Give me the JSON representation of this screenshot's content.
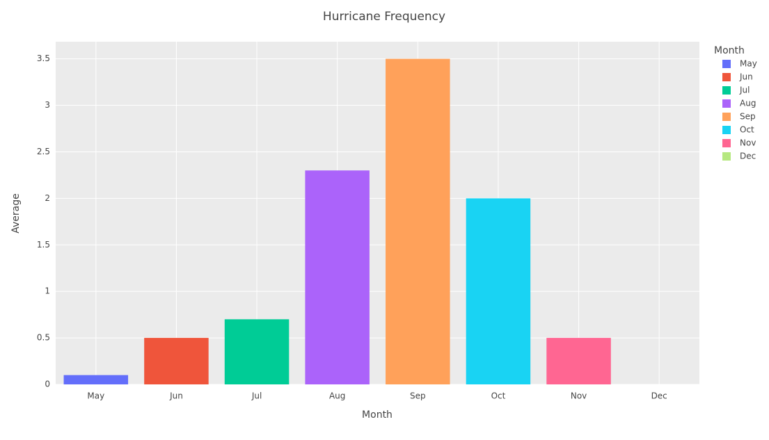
{
  "chart_data": {
    "type": "bar",
    "title": "Hurricane Frequency",
    "xlabel": "Month",
    "ylabel": "Average",
    "legend_title": "Month",
    "categories": [
      "May",
      "Jun",
      "Jul",
      "Aug",
      "Sep",
      "Oct",
      "Nov",
      "Dec"
    ],
    "values": [
      0.1,
      0.5,
      0.7,
      2.3,
      3.5,
      2.0,
      0.5,
      0
    ],
    "colors": [
      "#636efa",
      "#ef553b",
      "#00cc96",
      "#ab63fa",
      "#ffa15a",
      "#19d3f3",
      "#ff6692",
      "#b6e880"
    ],
    "ylim": [
      0,
      3.684
    ],
    "yticks": [
      0,
      0.5,
      1,
      1.5,
      2,
      2.5,
      3,
      3.5
    ],
    "grid": true,
    "legend": "right"
  }
}
